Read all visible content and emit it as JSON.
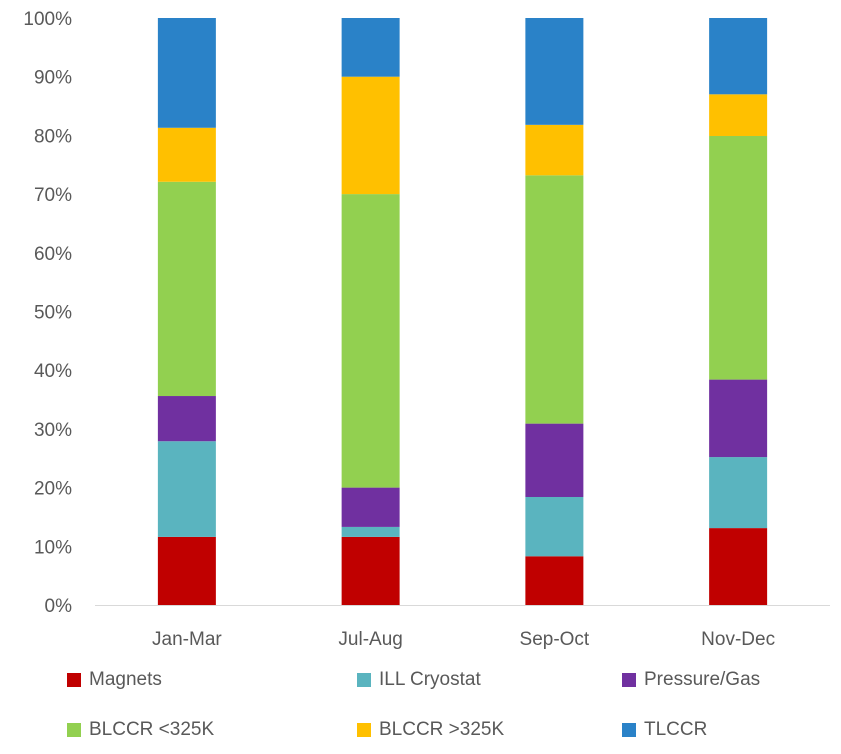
{
  "chart_data": {
    "type": "bar",
    "stacked": true,
    "categories": [
      "Jan-Mar",
      "Jul-Aug",
      "Sep-Oct",
      "Nov-Dec"
    ],
    "series": [
      {
        "name": "Magnets",
        "color": "#C00000",
        "values": [
          11.6,
          11.6,
          8.3,
          13.1
        ]
      },
      {
        "name": "ILL Cryostat",
        "color": "#5AB4BF",
        "values": [
          16.3,
          1.7,
          10.1,
          12.1
        ]
      },
      {
        "name": "Pressure/Gas",
        "color": "#7030A0",
        "values": [
          7.7,
          6.7,
          12.5,
          13.2
        ]
      },
      {
        "name": "BLCCR <325K",
        "color": "#92D050",
        "values": [
          36.5,
          50.0,
          42.3,
          41.5
        ]
      },
      {
        "name": "BLCCR >325K",
        "color": "#FFC000",
        "values": [
          9.2,
          20.0,
          8.6,
          7.1
        ]
      },
      {
        "name": "TLCCR",
        "color": "#2A82C8",
        "values": [
          18.7,
          10.0,
          18.2,
          13.0
        ]
      }
    ],
    "ylim": [
      0,
      100
    ],
    "yticks": [
      "0%",
      "10%",
      "20%",
      "30%",
      "40%",
      "50%",
      "60%",
      "70%",
      "80%",
      "90%",
      "100%"
    ],
    "grid": false,
    "legend_position": "bottom"
  }
}
